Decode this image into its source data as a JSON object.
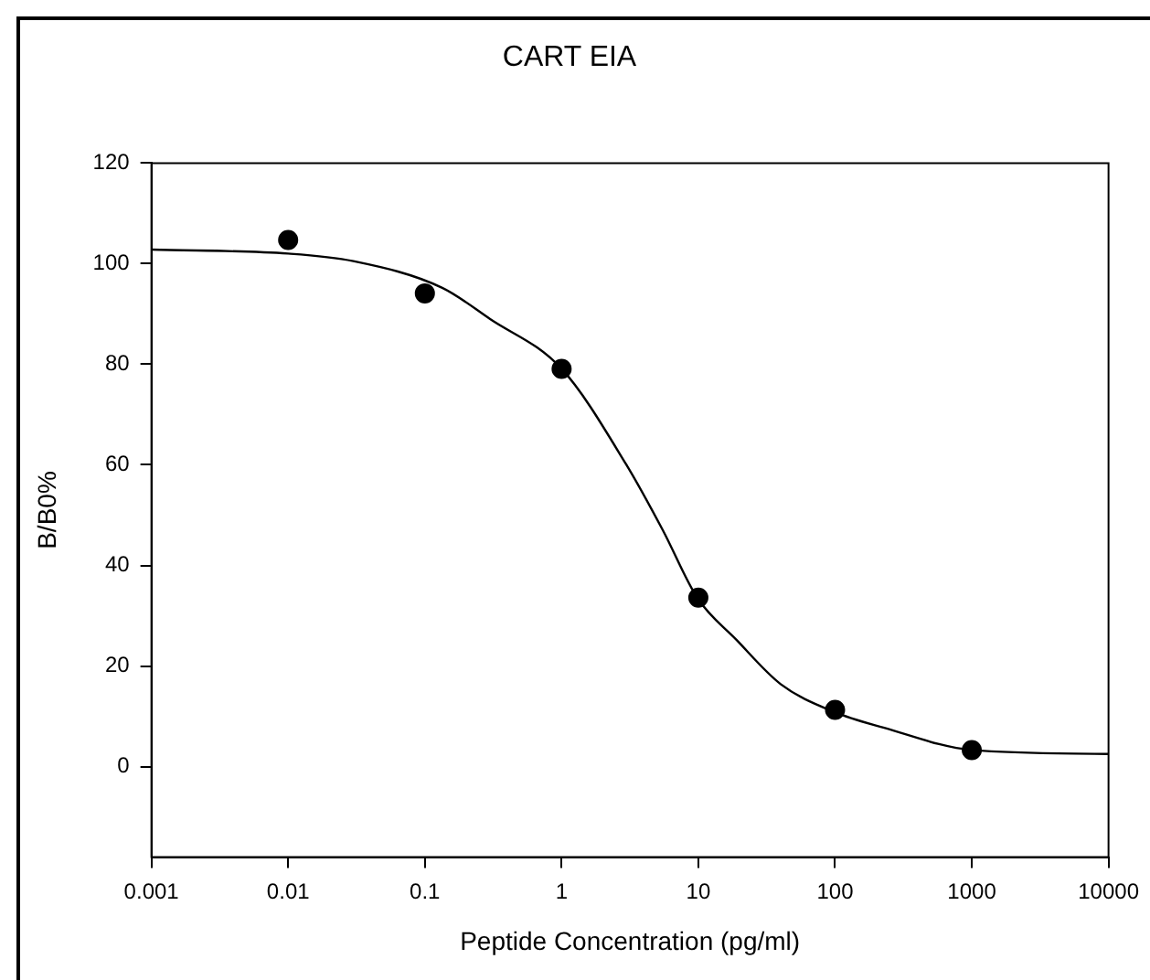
{
  "chart_data": {
    "type": "scatter",
    "title": "CART EIA",
    "xlabel": "Peptide Concentration (pg/ml)",
    "ylabel": "B/B0%",
    "log": "x",
    "xlim": [
      0.001,
      10000
    ],
    "xticks": [
      0.001,
      0.01,
      0.1,
      1,
      10,
      100,
      1000,
      10000
    ],
    "ylim": [
      -18,
      120
    ],
    "yticks": [
      0,
      20,
      40,
      60,
      80,
      100,
      120
    ],
    "grid": false,
    "legend": false,
    "series": [
      {
        "type": "scatter",
        "color": "#000000",
        "marker": "circle",
        "x": [
          0.01,
          0.1,
          1,
          10,
          100,
          1000
        ],
        "values": [
          104.7,
          94.1,
          79.1,
          33.6,
          11.3,
          3.3
        ]
      },
      {
        "type": "line",
        "color": "#000000",
        "marker": "none",
        "line_style": "solid",
        "x": [
          0.001,
          0.01,
          0.03,
          0.134,
          0.3,
          1,
          2.95,
          5.5,
          9.8,
          19,
          40,
          98,
          229,
          1000,
          10000
        ],
        "values": [
          102.8,
          102,
          100.5,
          95.2,
          89,
          79.1,
          60.2,
          47,
          33.6,
          25.2,
          16.4,
          10.9,
          7.7,
          3.3,
          2.5
        ]
      }
    ]
  }
}
